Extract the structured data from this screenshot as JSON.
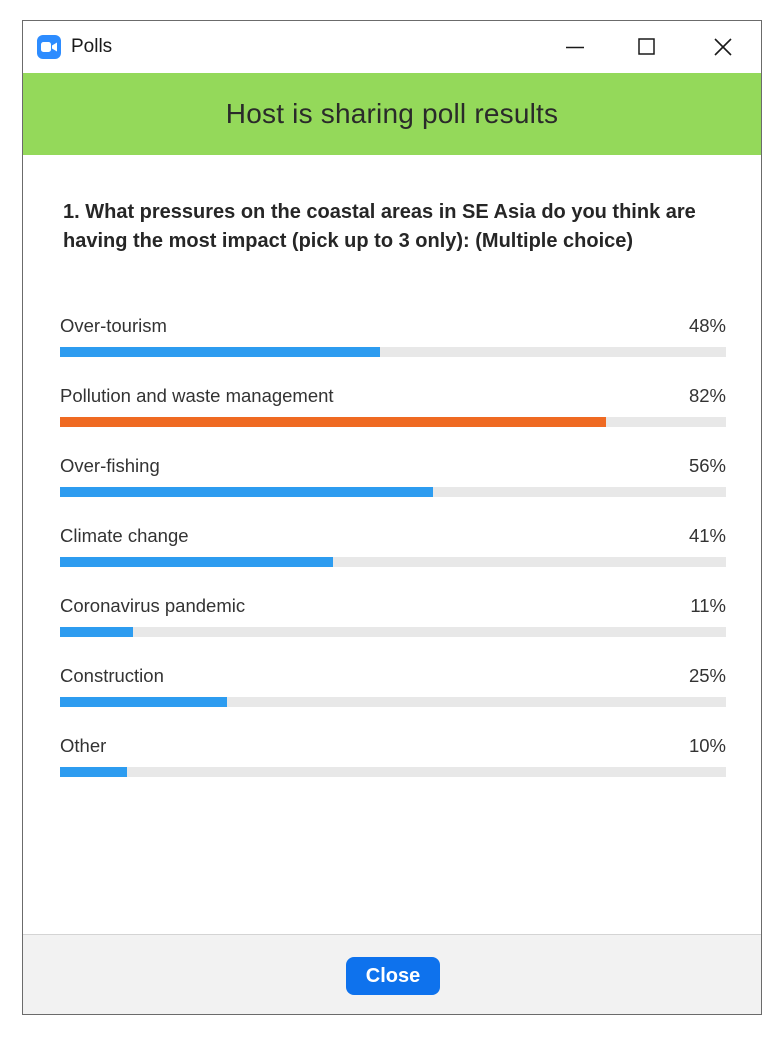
{
  "window": {
    "title": "Polls",
    "app_icon": "zoom-camera-icon",
    "controls": [
      "minimize-icon",
      "maximize-icon",
      "close-icon"
    ]
  },
  "banner": {
    "text": "Host is sharing poll results",
    "color": "#94d95a"
  },
  "question": {
    "text": "1. What pressures on the coastal areas in SE Asia do you think are having the most impact (pick up to 3 only): (Multiple choice)"
  },
  "options": [
    {
      "label": "Over-tourism",
      "percent_label": "48%",
      "value": 48
    },
    {
      "label": "Pollution and waste management",
      "percent_label": "82%",
      "value": 82
    },
    {
      "label": "Over-fishing",
      "percent_label": "56%",
      "value": 56
    },
    {
      "label": "Climate change",
      "percent_label": "41%",
      "value": 41
    },
    {
      "label": "Coronavirus pandemic",
      "percent_label": "11%",
      "value": 11
    },
    {
      "label": "Construction",
      "percent_label": "25%",
      "value": 25
    },
    {
      "label": "Other",
      "percent_label": "10%",
      "value": 10
    }
  ],
  "colors": {
    "bar_default": "#2d9cf0",
    "bar_top": "#ef6a22",
    "bar_track": "#e8e8e8",
    "button": "#0e72ed"
  },
  "footer": {
    "close_label": "Close"
  }
}
